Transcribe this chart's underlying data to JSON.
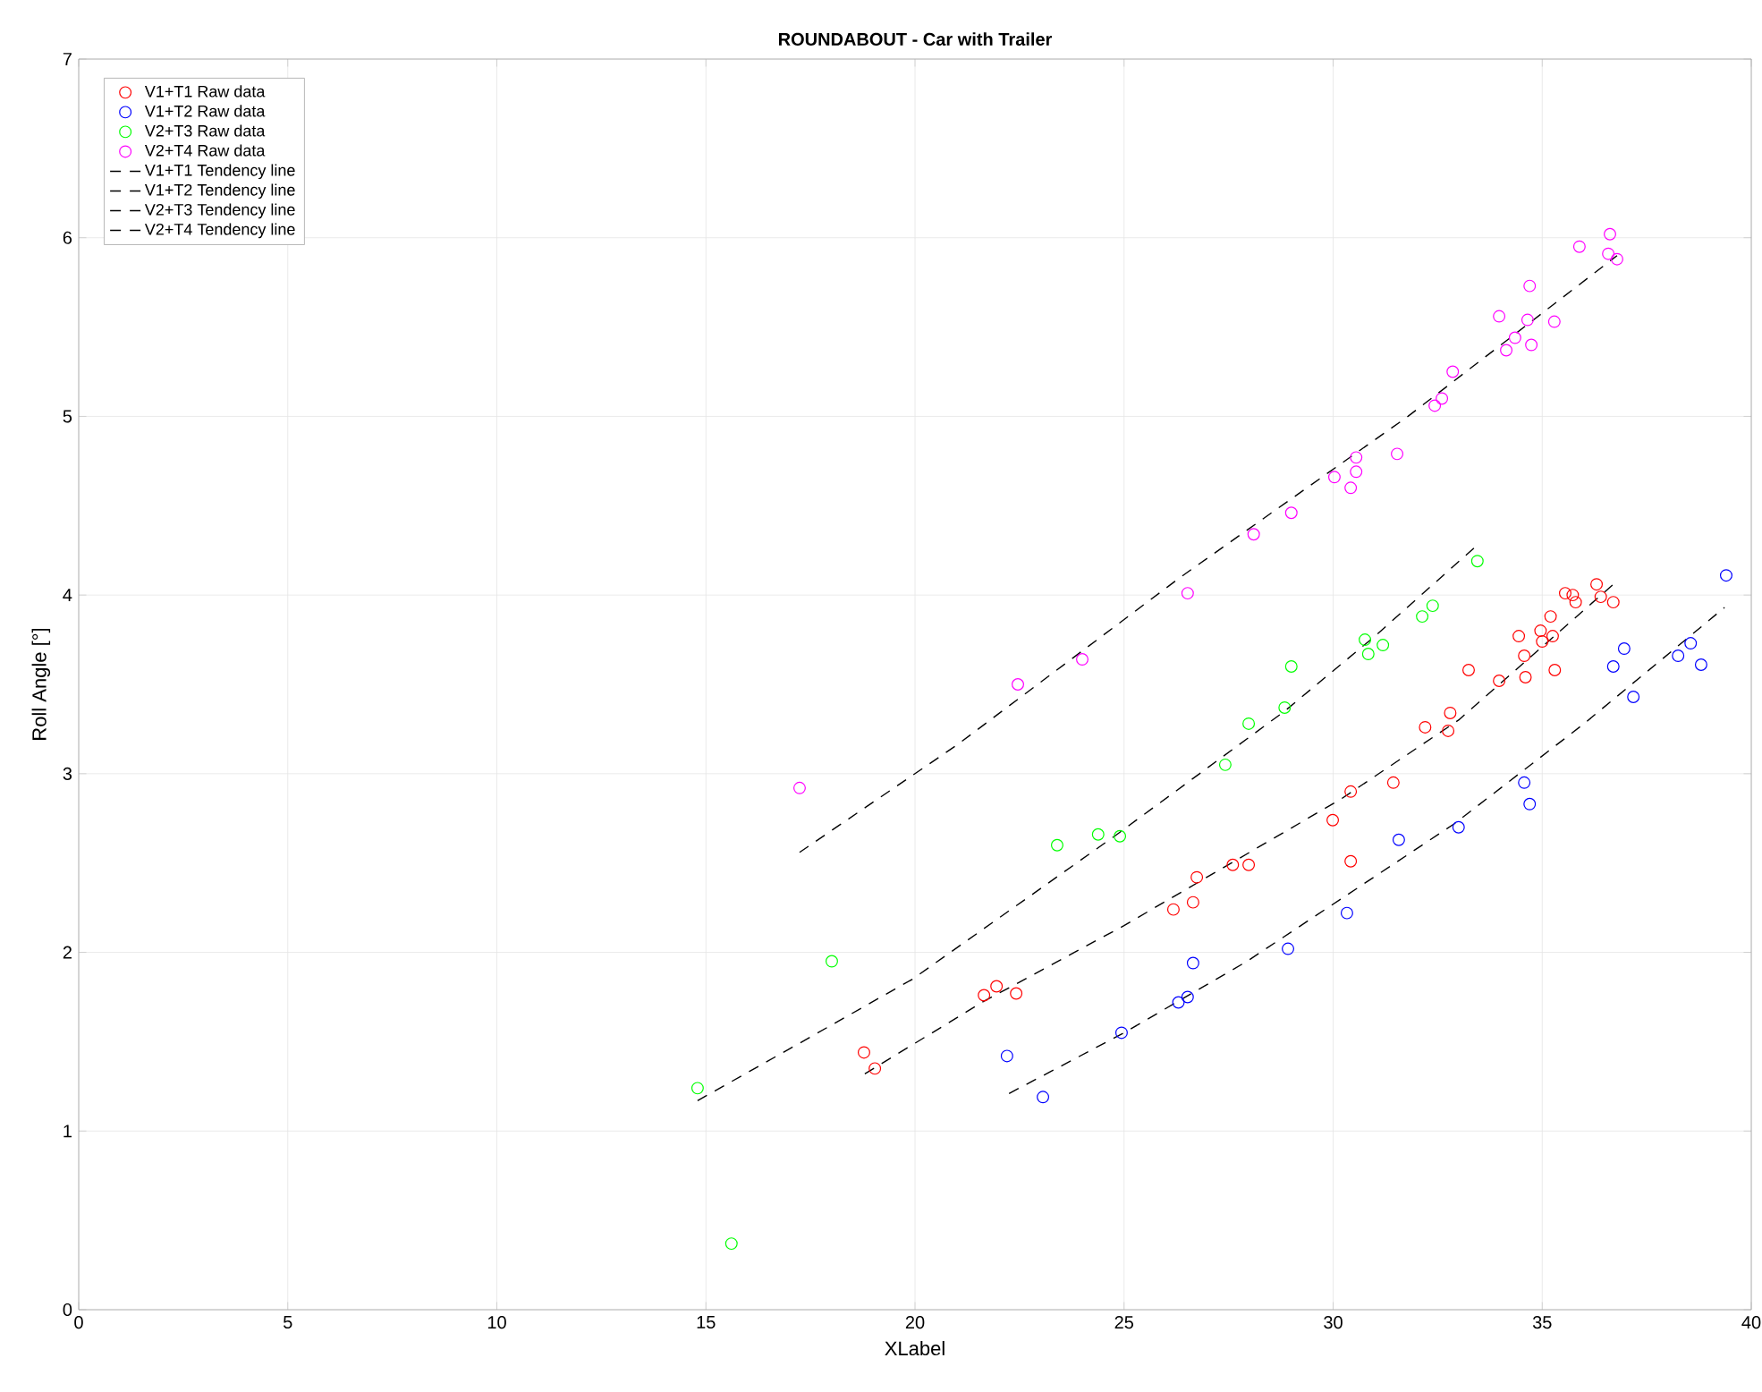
{
  "chart_data": {
    "type": "scatter",
    "title": "ROUNDABOUT - Car with Trailer",
    "xlabel": "XLabel",
    "ylabel": "Roll Angle [°]",
    "xlim": [
      0,
      40
    ],
    "ylim": [
      0,
      7
    ],
    "xticks": [
      0,
      5,
      10,
      15,
      20,
      25,
      30,
      35,
      40
    ],
    "yticks": [
      0,
      1,
      2,
      3,
      4,
      5,
      6,
      7
    ],
    "grid": true,
    "legend": "top left",
    "series": [
      {
        "name": "V1+T1 Raw data",
        "marker": "circle",
        "color": "#ff0000",
        "x": [
          18.78,
          19.04,
          21.65,
          21.95,
          22.42,
          26.18,
          26.74,
          26.65,
          27.6,
          27.98,
          29.99,
          30.42,
          30.42,
          31.44,
          32.2,
          32.8,
          32.75,
          33.24,
          33.97,
          34.44,
          34.57,
          34.6,
          34.96,
          35.0,
          35.2,
          35.25,
          35.3,
          35.55,
          35.73,
          35.8,
          36.4,
          36.3,
          36.7
        ],
        "values": [
          1.44,
          1.35,
          1.76,
          1.81,
          1.77,
          2.24,
          2.42,
          2.28,
          2.49,
          2.49,
          2.74,
          2.9,
          2.51,
          2.95,
          3.26,
          3.34,
          3.24,
          3.58,
          3.52,
          3.77,
          3.66,
          3.54,
          3.8,
          3.74,
          3.88,
          3.77,
          3.58,
          4.01,
          4.0,
          3.96,
          3.99,
          4.06,
          3.96
        ]
      },
      {
        "name": "V1+T2 Raw data",
        "marker": "circle",
        "color": "#0000ff",
        "x": [
          22.2,
          23.06,
          24.94,
          26.3,
          26.52,
          26.65,
          28.92,
          30.33,
          31.57,
          33.0,
          34.57,
          34.7,
          36.7,
          36.96,
          37.18,
          38.25,
          38.55,
          38.8,
          39.4
        ],
        "values": [
          1.42,
          1.19,
          1.55,
          1.72,
          1.75,
          1.94,
          2.02,
          2.22,
          2.63,
          2.7,
          2.95,
          2.83,
          3.6,
          3.7,
          3.43,
          3.66,
          3.73,
          3.61,
          4.11
        ]
      },
      {
        "name": "V2+T3 Raw data",
        "marker": "circle",
        "color": "#00ff00",
        "x": [
          14.8,
          15.61,
          18.01,
          23.4,
          24.38,
          24.9,
          27.42,
          27.98,
          28.84,
          29.0,
          30.76,
          30.84,
          31.19,
          32.13,
          32.38,
          33.45
        ],
        "values": [
          1.24,
          0.37,
          1.95,
          2.6,
          2.66,
          2.65,
          3.05,
          3.28,
          3.37,
          3.6,
          3.75,
          3.67,
          3.72,
          3.88,
          3.94,
          4.19
        ]
      },
      {
        "name": "V2+T4 Raw data",
        "marker": "circle",
        "color": "#ff00ff",
        "x": [
          17.24,
          22.46,
          24.0,
          26.52,
          28.1,
          29.0,
          30.03,
          30.42,
          30.55,
          30.55,
          31.53,
          32.43,
          32.6,
          32.86,
          33.97,
          34.14,
          34.35,
          34.65,
          34.7,
          34.74,
          35.29,
          35.89,
          36.62,
          36.58,
          36.79
        ],
        "values": [
          2.92,
          3.5,
          3.64,
          4.01,
          4.34,
          4.46,
          4.66,
          4.6,
          4.69,
          4.77,
          4.79,
          5.06,
          5.1,
          5.25,
          5.56,
          5.37,
          5.44,
          5.54,
          5.73,
          5.4,
          5.53,
          5.95,
          6.02,
          5.91,
          5.88
        ]
      },
      {
        "name": "V1+T1 Tendency line",
        "type": "line",
        "marker": "none",
        "line_style": "dashed",
        "color": "#000000",
        "x": [
          18.8,
          21.6,
          25,
          30.2,
          33,
          36.75
        ],
        "values": [
          1.32,
          1.72,
          2.15,
          2.86,
          3.3,
          4.07
        ]
      },
      {
        "name": "V1+T2 Tendency line",
        "type": "line",
        "marker": "none",
        "line_style": "dashed",
        "color": "#000000",
        "x": [
          22.25,
          25,
          27.94,
          32.9,
          36,
          39.36
        ],
        "values": [
          1.21,
          1.55,
          1.95,
          2.72,
          3.28,
          3.93
        ]
      },
      {
        "name": "V2+T3 Tendency line",
        "type": "line",
        "marker": "none",
        "line_style": "dashed",
        "color": "#000000",
        "x": [
          14.8,
          17,
          19.94,
          24.77,
          28.84,
          31,
          33.45
        ],
        "values": [
          1.17,
          1.46,
          1.85,
          2.65,
          3.35,
          3.77,
          4.28
        ]
      },
      {
        "name": "V2+T4 Tendency line",
        "type": "line",
        "marker": "none",
        "line_style": "dashed",
        "color": "#000000",
        "x": [
          17.24,
          21,
          26.35,
          31.79,
          36.79
        ],
        "values": [
          2.56,
          3.16,
          4.1,
          5.0,
          5.9
        ]
      }
    ]
  }
}
